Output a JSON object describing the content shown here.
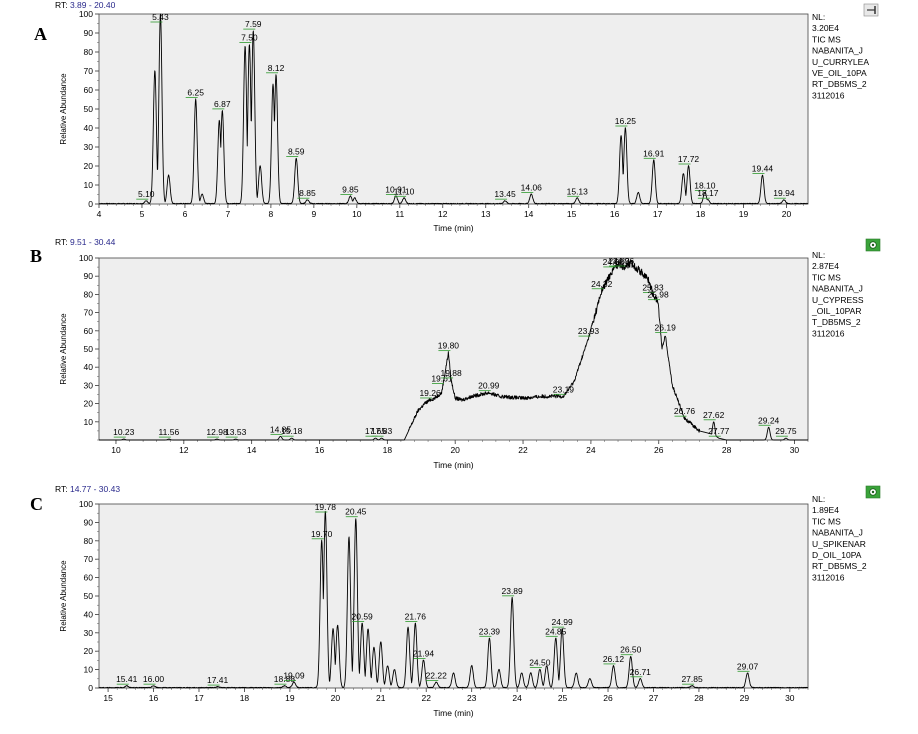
{
  "colors": {
    "plot_bg": "#eeeeee",
    "trace": "#000000",
    "rt_label": "#2a2a8c",
    "peak_label_underline": "#2e9a2e",
    "icon_green": "#3aa33a"
  },
  "panels": [
    {
      "letter": "A",
      "rt_prefix": "RT: ",
      "rt_range": "3.89 - 20.40",
      "icon": "pin-icon",
      "info_lines": [
        "NL:",
        "3.20E4",
        "TIC  MS",
        "NABANITA_J",
        "U_CURRYLEA",
        "VE_OIL_10PA",
        "RT_DB5MS_2",
        "3112016"
      ]
    },
    {
      "letter": "B",
      "rt_prefix": "RT: ",
      "rt_range": "9.51 - 30.44",
      "icon": "green-gear-icon",
      "info_lines": [
        "NL:",
        "2.87E4",
        "TIC  MS",
        "NABANITA_J",
        "U_CYPRESS",
        "_OIL_10PAR",
        "T_DB5MS_2",
        "3112016"
      ]
    },
    {
      "letter": "C",
      "rt_prefix": "RT: ",
      "rt_range": "14.77 - 30.43",
      "icon": "green-gear-icon",
      "info_lines": [
        "NL:",
        "1.89E4",
        "TIC  MS",
        "NABANITA_J",
        "U_SPIKENAR",
        "D_OIL_10PA",
        "RT_DB5MS_2",
        "3112016"
      ]
    }
  ],
  "chart_data": [
    {
      "type": "line",
      "panel": "A",
      "xlabel": "Time (min)",
      "ylabel": "Relative Abundance",
      "xlim": [
        4,
        20.5
      ],
      "ylim": [
        0,
        100
      ],
      "x_ticks": [
        4,
        5,
        6,
        7,
        8,
        9,
        10,
        11,
        12,
        13,
        14,
        15,
        16,
        17,
        18,
        19,
        20
      ],
      "y_ticks": [
        0,
        10,
        20,
        30,
        40,
        50,
        60,
        70,
        80,
        90,
        100
      ],
      "peak_width": 0.035,
      "peaks": [
        {
          "x": 5.1,
          "y": 1.5,
          "label": "5.10"
        },
        {
          "x": 5.3,
          "y": 70
        },
        {
          "x": 5.43,
          "y": 100,
          "label": "5.43"
        },
        {
          "x": 5.62,
          "y": 15
        },
        {
          "x": 6.25,
          "y": 55,
          "label": "6.25"
        },
        {
          "x": 6.4,
          "y": 5
        },
        {
          "x": 6.8,
          "y": 44
        },
        {
          "x": 6.87,
          "y": 49,
          "label": "6.87"
        },
        {
          "x": 7.4,
          "y": 83
        },
        {
          "x": 7.5,
          "y": 84,
          "label": "7.50"
        },
        {
          "x": 7.59,
          "y": 91,
          "label": "7.59"
        },
        {
          "x": 7.75,
          "y": 20
        },
        {
          "x": 8.05,
          "y": 63
        },
        {
          "x": 8.12,
          "y": 68,
          "label": "8.12"
        },
        {
          "x": 8.59,
          "y": 24,
          "label": "8.59"
        },
        {
          "x": 8.85,
          "y": 2,
          "label": "8.85"
        },
        {
          "x": 9.85,
          "y": 4,
          "label": "9.85"
        },
        {
          "x": 9.95,
          "y": 3
        },
        {
          "x": 10.91,
          "y": 4,
          "label": "10.91"
        },
        {
          "x": 11.1,
          "y": 3,
          "label": "11.10"
        },
        {
          "x": 13.45,
          "y": 1.5,
          "label": "13.45"
        },
        {
          "x": 14.06,
          "y": 5,
          "label": "14.06"
        },
        {
          "x": 15.13,
          "y": 3,
          "label": "15.13"
        },
        {
          "x": 16.15,
          "y": 36
        },
        {
          "x": 16.25,
          "y": 40,
          "label": "16.25"
        },
        {
          "x": 16.55,
          "y": 6
        },
        {
          "x": 16.91,
          "y": 23,
          "label": "16.91"
        },
        {
          "x": 17.6,
          "y": 16
        },
        {
          "x": 17.72,
          "y": 20,
          "label": "17.72"
        },
        {
          "x": 18.1,
          "y": 6,
          "label": "18.10"
        },
        {
          "x": 18.17,
          "y": 2,
          "label": "18.17"
        },
        {
          "x": 19.44,
          "y": 15,
          "label": "19.44"
        },
        {
          "x": 19.94,
          "y": 2,
          "label": "19.94"
        }
      ]
    },
    {
      "type": "line",
      "panel": "B",
      "xlabel": "Time (min)",
      "ylabel": "Relative Abundance",
      "xlim": [
        9.5,
        30.4
      ],
      "ylim": [
        0,
        100
      ],
      "x_ticks": [
        10,
        12,
        14,
        16,
        18,
        20,
        22,
        24,
        26,
        28,
        30
      ],
      "y_ticks": [
        10,
        20,
        30,
        40,
        50,
        60,
        70,
        80,
        90,
        100
      ],
      "baseline_profile": [
        [
          9.5,
          0
        ],
        [
          18.5,
          0
        ],
        [
          18.7,
          8
        ],
        [
          18.9,
          16
        ],
        [
          19.1,
          20
        ],
        [
          19.26,
          22
        ],
        [
          19.4,
          23
        ],
        [
          19.6,
          26
        ],
        [
          19.8,
          48
        ],
        [
          19.88,
          33
        ],
        [
          20.0,
          23
        ],
        [
          20.2,
          22
        ],
        [
          20.5,
          24
        ],
        [
          20.99,
          26
        ],
        [
          21.3,
          24
        ],
        [
          22.0,
          23
        ],
        [
          22.6,
          24
        ],
        [
          23.19,
          24
        ],
        [
          23.5,
          32
        ],
        [
          23.93,
          56
        ],
        [
          24.32,
          82
        ],
        [
          24.66,
          94
        ],
        [
          24.83,
          97
        ],
        [
          24.96,
          95
        ],
        [
          25.2,
          97
        ],
        [
          25.5,
          92
        ],
        [
          25.7,
          88
        ],
        [
          25.83,
          80
        ],
        [
          25.98,
          76
        ],
        [
          26.1,
          50
        ],
        [
          26.19,
          58
        ],
        [
          26.4,
          30
        ],
        [
          26.76,
          12
        ],
        [
          27.2,
          5
        ],
        [
          27.62,
          3
        ],
        [
          27.77,
          1
        ],
        [
          28.0,
          0
        ],
        [
          30.4,
          0
        ]
      ],
      "peak_width": 0.04,
      "peaks": [
        {
          "x": 10.23,
          "y": 0.5,
          "label": "10.23"
        },
        {
          "x": 11.56,
          "y": 0.5,
          "label": "11.56"
        },
        {
          "x": 12.98,
          "y": 0.5,
          "label": "12.98"
        },
        {
          "x": 13.53,
          "y": 0.5,
          "label": "13.53"
        },
        {
          "x": 14.85,
          "y": 2,
          "label": "14.85"
        },
        {
          "x": 15.18,
          "y": 1,
          "label": "15.18"
        },
        {
          "x": 17.65,
          "y": 1,
          "label": "17.65"
        },
        {
          "x": 17.83,
          "y": 1,
          "label": "17.83"
        },
        {
          "x": 27.62,
          "y": 10,
          "label": "27.62"
        },
        {
          "x": 29.24,
          "y": 7,
          "label": "29.24"
        },
        {
          "x": 29.75,
          "y": 1,
          "label": "29.75"
        }
      ],
      "labels_only": [
        {
          "x": 19.26,
          "y": 22,
          "label": "19.26"
        },
        {
          "x": 19.61,
          "y": 30,
          "label": "19.61"
        },
        {
          "x": 19.8,
          "y": 48,
          "label": "19.80"
        },
        {
          "x": 19.88,
          "y": 33,
          "label": "19.88"
        },
        {
          "x": 20.99,
          "y": 26,
          "label": "20.99"
        },
        {
          "x": 23.19,
          "y": 24,
          "label": "23.19"
        },
        {
          "x": 23.93,
          "y": 56,
          "label": "23.93"
        },
        {
          "x": 24.32,
          "y": 82,
          "label": "24.32"
        },
        {
          "x": 24.66,
          "y": 94,
          "label": "24.66"
        },
        {
          "x": 24.83,
          "y": 97,
          "label": "24.83"
        },
        {
          "x": 24.96,
          "y": 95,
          "label": "24.96"
        },
        {
          "x": 25.83,
          "y": 80,
          "label": "25.83"
        },
        {
          "x": 25.98,
          "y": 76,
          "label": "25.98"
        },
        {
          "x": 26.19,
          "y": 58,
          "label": "26.19"
        },
        {
          "x": 26.76,
          "y": 12,
          "label": "26.76"
        },
        {
          "x": 27.77,
          "y": 1,
          "label": "27.77"
        }
      ]
    },
    {
      "type": "line",
      "panel": "C",
      "xlabel": "Time (min)",
      "ylabel": "Relative Abundance",
      "xlim": [
        14.8,
        30.4
      ],
      "ylim": [
        0,
        100
      ],
      "x_ticks": [
        15,
        16,
        17,
        18,
        19,
        20,
        21,
        22,
        23,
        24,
        25,
        26,
        27,
        28,
        29,
        30
      ],
      "y_ticks": [
        0,
        10,
        20,
        30,
        40,
        50,
        60,
        70,
        80,
        90,
        100
      ],
      "peak_width": 0.035,
      "peaks": [
        {
          "x": 15.41,
          "y": 1,
          "label": "15.41"
        },
        {
          "x": 16.0,
          "y": 1,
          "label": "16.00"
        },
        {
          "x": 17.41,
          "y": 0.5,
          "label": "17.41"
        },
        {
          "x": 18.88,
          "y": 1,
          "label": "18.88"
        },
        {
          "x": 19.09,
          "y": 3,
          "label": "19.09"
        },
        {
          "x": 19.7,
          "y": 80,
          "label": "19.70"
        },
        {
          "x": 19.78,
          "y": 96,
          "label": "19.78"
        },
        {
          "x": 19.95,
          "y": 32
        },
        {
          "x": 20.05,
          "y": 34
        },
        {
          "x": 20.3,
          "y": 82
        },
        {
          "x": 20.45,
          "y": 92,
          "label": "20.45"
        },
        {
          "x": 20.59,
          "y": 35,
          "label": "20.59"
        },
        {
          "x": 20.72,
          "y": 32
        },
        {
          "x": 20.85,
          "y": 22
        },
        {
          "x": 21.0,
          "y": 25
        },
        {
          "x": 21.15,
          "y": 12
        },
        {
          "x": 21.3,
          "y": 10
        },
        {
          "x": 21.6,
          "y": 33
        },
        {
          "x": 21.76,
          "y": 35,
          "label": "21.76"
        },
        {
          "x": 21.94,
          "y": 15,
          "label": "21.94"
        },
        {
          "x": 22.22,
          "y": 3,
          "label": "22.22"
        },
        {
          "x": 22.6,
          "y": 8
        },
        {
          "x": 23.0,
          "y": 12
        },
        {
          "x": 23.39,
          "y": 27,
          "label": "23.39"
        },
        {
          "x": 23.6,
          "y": 10
        },
        {
          "x": 23.89,
          "y": 49,
          "label": "23.89"
        },
        {
          "x": 24.1,
          "y": 8
        },
        {
          "x": 24.3,
          "y": 8
        },
        {
          "x": 24.5,
          "y": 10,
          "label": "24.50"
        },
        {
          "x": 24.65,
          "y": 12
        },
        {
          "x": 24.85,
          "y": 27,
          "label": "24.85"
        },
        {
          "x": 24.99,
          "y": 32,
          "label": "24.99"
        },
        {
          "x": 25.3,
          "y": 8
        },
        {
          "x": 25.6,
          "y": 5
        },
        {
          "x": 26.12,
          "y": 12,
          "label": "26.12"
        },
        {
          "x": 26.5,
          "y": 17,
          "label": "26.50"
        },
        {
          "x": 26.71,
          "y": 5,
          "label": "26.71"
        },
        {
          "x": 27.85,
          "y": 1,
          "label": "27.85"
        },
        {
          "x": 29.07,
          "y": 8,
          "label": "29.07"
        }
      ]
    }
  ]
}
